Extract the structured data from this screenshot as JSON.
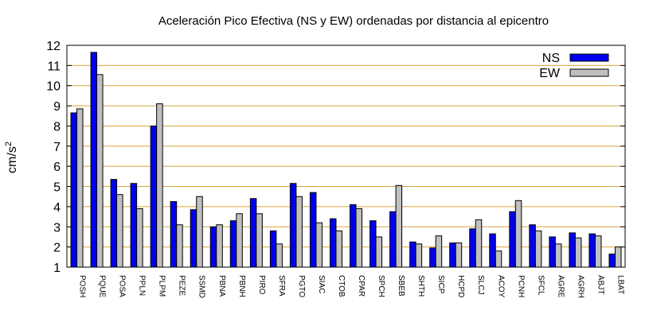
{
  "chart_data": {
    "type": "bar",
    "title": "Aceleración Pico Efectiva (NS y EW) ordenadas por distancia al epicentro",
    "xlabel": "",
    "ylabel": "cm/s",
    "ylabel_sup": "2",
    "ylim": [
      1,
      12
    ],
    "yticks": [
      1,
      2,
      3,
      4,
      5,
      6,
      7,
      8,
      9,
      10,
      11,
      12
    ],
    "grid": true,
    "legend_position": "top-right",
    "categories": [
      "POSH",
      "PQUE",
      "POSA",
      "PPLN",
      "PLPM",
      "PEZE",
      "SSMD",
      "PBNA",
      "PBNH",
      "PIRO",
      "SFRA",
      "PGTO",
      "SIAC",
      "CTOB",
      "CPAR",
      "SPCH",
      "SBEB",
      "SHTH",
      "SICP",
      "HCPD",
      "SLCJ",
      "ACOY",
      "PCNH",
      "SFCL",
      "AGRE",
      "AGRH",
      "ABJT",
      "LBAT"
    ],
    "series": [
      {
        "name": "NS",
        "color": "#0000ee",
        "values": [
          8.65,
          11.65,
          5.35,
          5.15,
          8.0,
          4.25,
          3.85,
          3.0,
          3.3,
          4.4,
          2.8,
          5.15,
          4.7,
          3.4,
          4.1,
          3.3,
          3.75,
          2.25,
          1.95,
          2.2,
          2.9,
          2.65,
          3.75,
          3.1,
          2.5,
          2.7,
          2.65,
          1.65
        ]
      },
      {
        "name": "EW",
        "color": "#c0c0c0",
        "values": [
          8.85,
          10.55,
          4.6,
          3.9,
          9.1,
          3.1,
          4.5,
          3.1,
          3.65,
          3.65,
          2.15,
          4.5,
          3.2,
          2.8,
          3.9,
          2.5,
          5.05,
          2.15,
          2.55,
          2.2,
          3.35,
          1.8,
          4.3,
          2.8,
          2.15,
          2.45,
          2.55,
          2.0
        ]
      }
    ]
  }
}
